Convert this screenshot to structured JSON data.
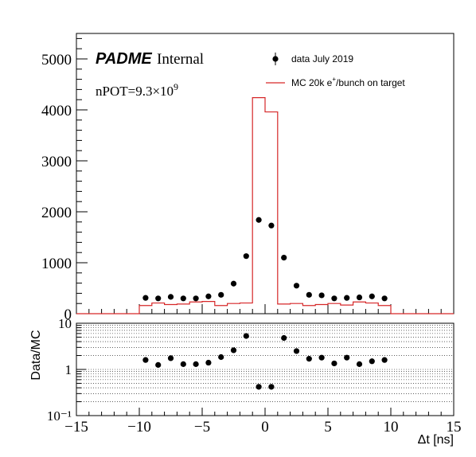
{
  "labels": {
    "padme": "PADME",
    "internal": "Internal",
    "npot_prefix": "nPOT=9.3×10",
    "npot_exp": "9",
    "ratio_ylabel": "Data/MC",
    "xlabel": "Δt [ns]"
  },
  "legend": {
    "data": "data July 2019",
    "mc_prefix": "MC 20k e",
    "mc_sup": "+",
    "mc_suffix": "/bunch on target"
  },
  "colors": {
    "data": "#000000",
    "mc": "#d62728",
    "axis": "#000000"
  },
  "chart_data": [
    {
      "type": "scatter",
      "panel": "main",
      "xlim": [
        -15,
        15
      ],
      "ylim": [
        0,
        5500
      ],
      "yticks": [
        0,
        1000,
        2000,
        3000,
        4000,
        5000
      ],
      "xticks": [
        -15,
        -10,
        -5,
        0,
        5,
        10,
        15
      ],
      "series": [
        {
          "name": "data July 2019",
          "style": "markers",
          "x": [
            -9.5,
            -8.5,
            -7.5,
            -6.5,
            -5.5,
            -4.5,
            -3.5,
            -2.5,
            -1.5,
            -0.5,
            0.5,
            1.5,
            2.5,
            3.5,
            4.5,
            5.5,
            6.5,
            7.5,
            8.5,
            9.5
          ],
          "y": [
            310,
            300,
            330,
            300,
            300,
            340,
            370,
            590,
            1130,
            1840,
            1730,
            1100,
            550,
            370,
            360,
            300,
            310,
            320,
            340,
            300
          ]
        },
        {
          "name": "MC 20k e+/bunch on target",
          "style": "histogram",
          "bin_edges": [
            -15,
            -10,
            -9,
            -8,
            -7,
            -6,
            -5,
            -4,
            -3,
            -2,
            -1,
            0,
            1,
            2,
            3,
            4,
            5,
            6,
            7,
            8,
            9,
            10,
            15
          ],
          "values": [
            0,
            160,
            210,
            180,
            190,
            230,
            240,
            160,
            200,
            210,
            4240,
            3960,
            190,
            200,
            160,
            180,
            200,
            170,
            230,
            210,
            160,
            0
          ]
        }
      ]
    },
    {
      "type": "scatter",
      "panel": "ratio",
      "ylabel": "Data/MC",
      "xlabel": "Δt [ns]",
      "log_y": true,
      "xlim": [
        -15,
        15
      ],
      "ylim": [
        0.1,
        10
      ],
      "yticks": [
        0.1,
        1,
        10
      ],
      "ytick_labels": [
        "10⁻¹",
        "1",
        "10"
      ],
      "xticks": [
        -15,
        -10,
        -5,
        0,
        5,
        10,
        15
      ],
      "series": [
        {
          "name": "Data/MC",
          "x": [
            -9.5,
            -8.5,
            -7.5,
            -6.5,
            -5.5,
            -4.5,
            -3.5,
            -2.5,
            -1.5,
            -0.5,
            0.5,
            1.5,
            2.5,
            3.5,
            4.5,
            5.5,
            6.5,
            7.5,
            8.5,
            9.5
          ],
          "y": [
            1.6,
            1.25,
            1.75,
            1.3,
            1.3,
            1.4,
            1.85,
            2.6,
            5.3,
            0.42,
            0.42,
            4.8,
            2.5,
            1.7,
            1.8,
            1.35,
            1.8,
            1.3,
            1.5,
            1.6
          ]
        }
      ]
    }
  ]
}
